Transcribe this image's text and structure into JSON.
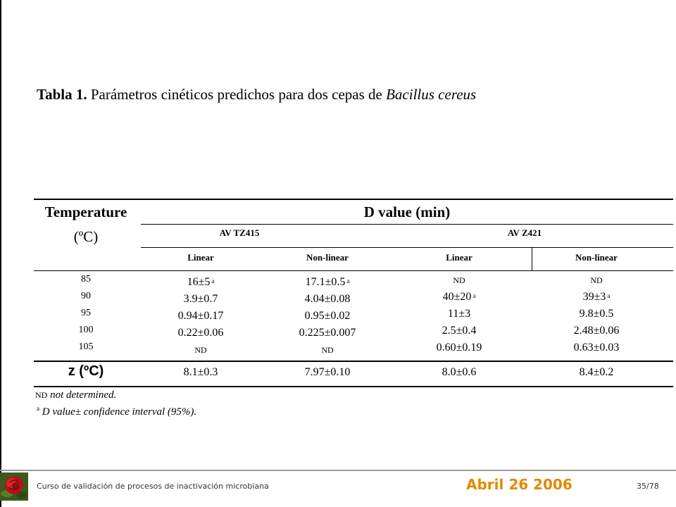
{
  "caption": {
    "label": "Tabla 1.",
    "text": "Parámetros cinéticos predichos para dos cepas de",
    "species": "Bacillus cereus"
  },
  "table": {
    "temp_header": "Temperature",
    "temp_unit": "(ºC)",
    "d_header": "D value (min)",
    "strains": [
      "AV TZ415",
      "AV Z421"
    ],
    "methods": [
      "Linear",
      "Non-linear",
      "Linear",
      "Non-linear"
    ],
    "temperatures": [
      "85",
      "90",
      "95",
      "100",
      "105"
    ],
    "columns": [
      [
        {
          "value": "16±5",
          "sup": "a"
        },
        {
          "value": "3.9±0.7",
          "sup": ""
        },
        {
          "value": "0.94±0.17",
          "sup": ""
        },
        {
          "value": "0.22±0.06",
          "sup": ""
        },
        {
          "value": "ND",
          "sup": ""
        }
      ],
      [
        {
          "value": "17.1±0.5",
          "sup": "a"
        },
        {
          "value": "4.04±0.08",
          "sup": ""
        },
        {
          "value": "0.95±0.02",
          "sup": ""
        },
        {
          "value": "0.225±0.007",
          "sup": ""
        },
        {
          "value": "ND",
          "sup": ""
        }
      ],
      [
        {
          "value": "ND",
          "sup": ""
        },
        {
          "value": "40±20",
          "sup": "a"
        },
        {
          "value": "11±3",
          "sup": ""
        },
        {
          "value": "2.5±0.4",
          "sup": ""
        },
        {
          "value": "0.60±0.19",
          "sup": ""
        }
      ],
      [
        {
          "value": "ND",
          "sup": ""
        },
        {
          "value": "39±3",
          "sup": "a"
        },
        {
          "value": "9.8±0.5",
          "sup": ""
        },
        {
          "value": "2.48±0.06",
          "sup": ""
        },
        {
          "value": "0.63±0.03",
          "sup": ""
        }
      ]
    ],
    "z_label": "z (ºC)",
    "z_values": [
      "8.1±0.3",
      "7.97±0.10",
      "8.0±0.6",
      "8.4±0.2"
    ]
  },
  "notes": {
    "nd_abbr": "ND",
    "nd_text": " not determined.",
    "a_mark": "a",
    "a_text": " D value± confidence interval (95%)."
  },
  "footer": {
    "course": "Curso de validación de procesos de inactivación microbiana",
    "date": "Abril 26 2006",
    "page": "35/78"
  }
}
